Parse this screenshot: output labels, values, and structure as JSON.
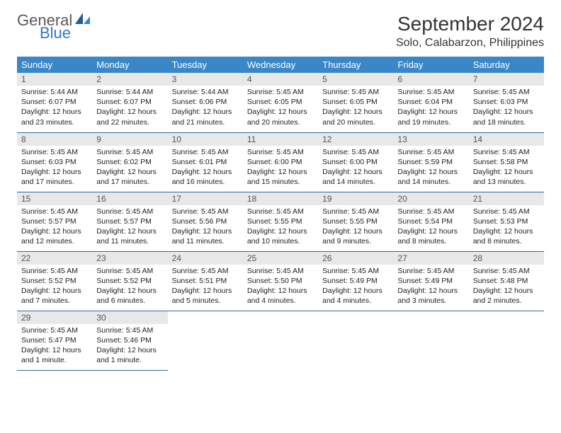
{
  "brand": {
    "general": "General",
    "blue": "Blue"
  },
  "title": "September 2024",
  "location": "Solo, Calabarzon, Philippines",
  "colors": {
    "header_bg": "#3a87c8",
    "header_text": "#ffffff",
    "daynum_bg": "#e8e8e8",
    "row_divider": "#2f6aa0",
    "logo_blue": "#2f78c2",
    "logo_gray": "#5a5a5a"
  },
  "weekdays": [
    "Sunday",
    "Monday",
    "Tuesday",
    "Wednesday",
    "Thursday",
    "Friday",
    "Saturday"
  ],
  "days": [
    {
      "n": "1",
      "sunrise": "5:44 AM",
      "sunset": "6:07 PM",
      "daylight": "12 hours and 23 minutes."
    },
    {
      "n": "2",
      "sunrise": "5:44 AM",
      "sunset": "6:07 PM",
      "daylight": "12 hours and 22 minutes."
    },
    {
      "n": "3",
      "sunrise": "5:44 AM",
      "sunset": "6:06 PM",
      "daylight": "12 hours and 21 minutes."
    },
    {
      "n": "4",
      "sunrise": "5:45 AM",
      "sunset": "6:05 PM",
      "daylight": "12 hours and 20 minutes."
    },
    {
      "n": "5",
      "sunrise": "5:45 AM",
      "sunset": "6:05 PM",
      "daylight": "12 hours and 20 minutes."
    },
    {
      "n": "6",
      "sunrise": "5:45 AM",
      "sunset": "6:04 PM",
      "daylight": "12 hours and 19 minutes."
    },
    {
      "n": "7",
      "sunrise": "5:45 AM",
      "sunset": "6:03 PM",
      "daylight": "12 hours and 18 minutes."
    },
    {
      "n": "8",
      "sunrise": "5:45 AM",
      "sunset": "6:03 PM",
      "daylight": "12 hours and 17 minutes."
    },
    {
      "n": "9",
      "sunrise": "5:45 AM",
      "sunset": "6:02 PM",
      "daylight": "12 hours and 17 minutes."
    },
    {
      "n": "10",
      "sunrise": "5:45 AM",
      "sunset": "6:01 PM",
      "daylight": "12 hours and 16 minutes."
    },
    {
      "n": "11",
      "sunrise": "5:45 AM",
      "sunset": "6:00 PM",
      "daylight": "12 hours and 15 minutes."
    },
    {
      "n": "12",
      "sunrise": "5:45 AM",
      "sunset": "6:00 PM",
      "daylight": "12 hours and 14 minutes."
    },
    {
      "n": "13",
      "sunrise": "5:45 AM",
      "sunset": "5:59 PM",
      "daylight": "12 hours and 14 minutes."
    },
    {
      "n": "14",
      "sunrise": "5:45 AM",
      "sunset": "5:58 PM",
      "daylight": "12 hours and 13 minutes."
    },
    {
      "n": "15",
      "sunrise": "5:45 AM",
      "sunset": "5:57 PM",
      "daylight": "12 hours and 12 minutes."
    },
    {
      "n": "16",
      "sunrise": "5:45 AM",
      "sunset": "5:57 PM",
      "daylight": "12 hours and 11 minutes."
    },
    {
      "n": "17",
      "sunrise": "5:45 AM",
      "sunset": "5:56 PM",
      "daylight": "12 hours and 11 minutes."
    },
    {
      "n": "18",
      "sunrise": "5:45 AM",
      "sunset": "5:55 PM",
      "daylight": "12 hours and 10 minutes."
    },
    {
      "n": "19",
      "sunrise": "5:45 AM",
      "sunset": "5:55 PM",
      "daylight": "12 hours and 9 minutes."
    },
    {
      "n": "20",
      "sunrise": "5:45 AM",
      "sunset": "5:54 PM",
      "daylight": "12 hours and 8 minutes."
    },
    {
      "n": "21",
      "sunrise": "5:45 AM",
      "sunset": "5:53 PM",
      "daylight": "12 hours and 8 minutes."
    },
    {
      "n": "22",
      "sunrise": "5:45 AM",
      "sunset": "5:52 PM",
      "daylight": "12 hours and 7 minutes."
    },
    {
      "n": "23",
      "sunrise": "5:45 AM",
      "sunset": "5:52 PM",
      "daylight": "12 hours and 6 minutes."
    },
    {
      "n": "24",
      "sunrise": "5:45 AM",
      "sunset": "5:51 PM",
      "daylight": "12 hours and 5 minutes."
    },
    {
      "n": "25",
      "sunrise": "5:45 AM",
      "sunset": "5:50 PM",
      "daylight": "12 hours and 4 minutes."
    },
    {
      "n": "26",
      "sunrise": "5:45 AM",
      "sunset": "5:49 PM",
      "daylight": "12 hours and 4 minutes."
    },
    {
      "n": "27",
      "sunrise": "5:45 AM",
      "sunset": "5:49 PM",
      "daylight": "12 hours and 3 minutes."
    },
    {
      "n": "28",
      "sunrise": "5:45 AM",
      "sunset": "5:48 PM",
      "daylight": "12 hours and 2 minutes."
    },
    {
      "n": "29",
      "sunrise": "5:45 AM",
      "sunset": "5:47 PM",
      "daylight": "12 hours and 1 minute."
    },
    {
      "n": "30",
      "sunrise": "5:45 AM",
      "sunset": "5:46 PM",
      "daylight": "12 hours and 1 minute."
    }
  ],
  "labels": {
    "sunrise": "Sunrise:",
    "sunset": "Sunset:",
    "daylight": "Daylight:"
  },
  "layout": {
    "first_day_column": 0,
    "total_days": 30,
    "columns": 7
  }
}
